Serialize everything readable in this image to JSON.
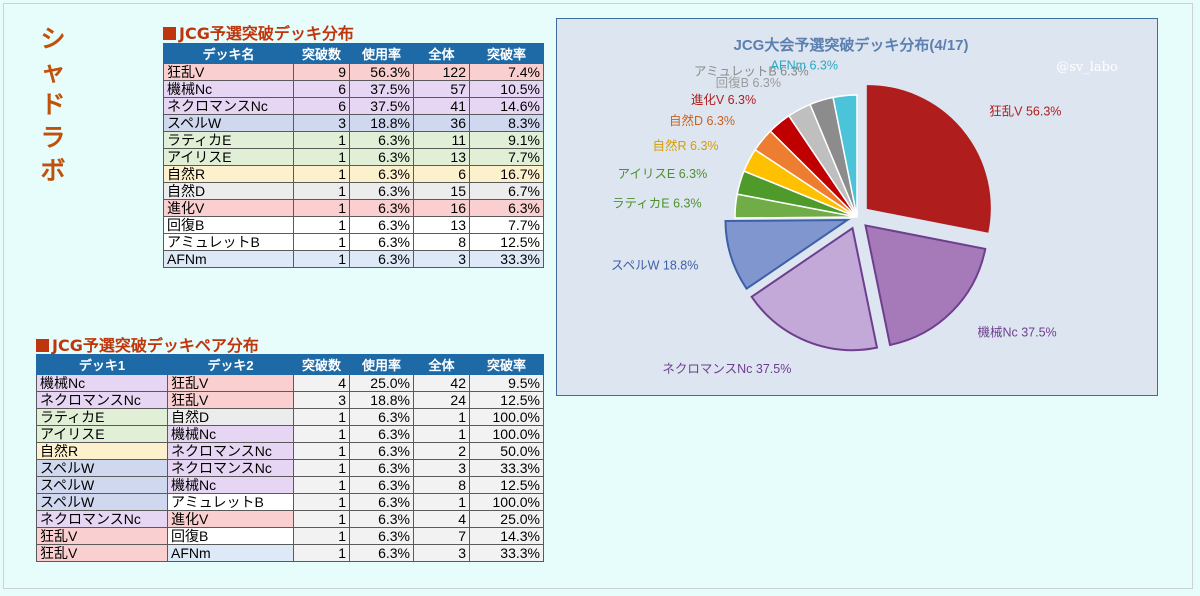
{
  "side_title": "シャドラボ",
  "deck_table": {
    "title": "JCG予選突破デッキ分布",
    "headers": [
      "デッキ名",
      "突破数",
      "使用率",
      "全体",
      "突破率"
    ],
    "rows": [
      {
        "name": "狂乱V",
        "count": "9",
        "usage": "56.3%",
        "total": "122",
        "rate": "7.4%",
        "color": "#f9cfcf"
      },
      {
        "name": "機械Nc",
        "count": "6",
        "usage": "37.5%",
        "total": "57",
        "rate": "10.5%",
        "color": "#e6d6f3"
      },
      {
        "name": "ネクロマンスNc",
        "count": "6",
        "usage": "37.5%",
        "total": "41",
        "rate": "14.6%",
        "color": "#e6d6f3"
      },
      {
        "name": "スペルW",
        "count": "3",
        "usage": "18.8%",
        "total": "36",
        "rate": "8.3%",
        "color": "#cfd8ee"
      },
      {
        "name": "ラティカE",
        "count": "1",
        "usage": "6.3%",
        "total": "11",
        "rate": "9.1%",
        "color": "#e0efd6"
      },
      {
        "name": "アイリスE",
        "count": "1",
        "usage": "6.3%",
        "total": "13",
        "rate": "7.7%",
        "color": "#e0efd6"
      },
      {
        "name": "自然R",
        "count": "1",
        "usage": "6.3%",
        "total": "6",
        "rate": "16.7%",
        "color": "#fdf0cc"
      },
      {
        "name": "自然D",
        "count": "1",
        "usage": "6.3%",
        "total": "15",
        "rate": "6.7%",
        "color": "#ececec"
      },
      {
        "name": "進化V",
        "count": "1",
        "usage": "6.3%",
        "total": "16",
        "rate": "6.3%",
        "color": "#f9cfcf"
      },
      {
        "name": "回復B",
        "count": "1",
        "usage": "6.3%",
        "total": "13",
        "rate": "7.7%",
        "color": "#ffffff"
      },
      {
        "name": "アミュレットB",
        "count": "1",
        "usage": "6.3%",
        "total": "8",
        "rate": "12.5%",
        "color": "#ffffff"
      },
      {
        "name": "AFNm",
        "count": "1",
        "usage": "6.3%",
        "total": "3",
        "rate": "33.3%",
        "color": "#dde9f6"
      }
    ]
  },
  "pair_table": {
    "title": "JCG予選突破デッキペア分布",
    "headers": [
      "デッキ1",
      "デッキ2",
      "突破数",
      "使用率",
      "全体",
      "突破率"
    ],
    "rows": [
      {
        "deck1": "機械Nc",
        "c1": "#e6d6f3",
        "deck2": "狂乱V",
        "c2": "#f9cfcf",
        "count": "4",
        "usage": "25.0%",
        "total": "42",
        "rate": "9.5%"
      },
      {
        "deck1": "ネクロマンスNc",
        "c1": "#e6d6f3",
        "deck2": "狂乱V",
        "c2": "#f9cfcf",
        "count": "3",
        "usage": "18.8%",
        "total": "24",
        "rate": "12.5%"
      },
      {
        "deck1": "ラティカE",
        "c1": "#e0efd6",
        "deck2": "自然D",
        "c2": "#ececec",
        "count": "1",
        "usage": "6.3%",
        "total": "1",
        "rate": "100.0%"
      },
      {
        "deck1": "アイリスE",
        "c1": "#e0efd6",
        "deck2": "機械Nc",
        "c2": "#e6d6f3",
        "count": "1",
        "usage": "6.3%",
        "total": "1",
        "rate": "100.0%"
      },
      {
        "deck1": "自然R",
        "c1": "#fdf0cc",
        "deck2": "ネクロマンスNc",
        "c2": "#e6d6f3",
        "count": "1",
        "usage": "6.3%",
        "total": "2",
        "rate": "50.0%"
      },
      {
        "deck1": "スペルW",
        "c1": "#cfd8ee",
        "deck2": "ネクロマンスNc",
        "c2": "#e6d6f3",
        "count": "1",
        "usage": "6.3%",
        "total": "3",
        "rate": "33.3%"
      },
      {
        "deck1": "スペルW",
        "c1": "#cfd8ee",
        "deck2": "機械Nc",
        "c2": "#e6d6f3",
        "count": "1",
        "usage": "6.3%",
        "total": "8",
        "rate": "12.5%"
      },
      {
        "deck1": "スペルW",
        "c1": "#cfd8ee",
        "deck2": "アミュレットB",
        "c2": "#ffffff",
        "count": "1",
        "usage": "6.3%",
        "total": "1",
        "rate": "100.0%"
      },
      {
        "deck1": "ネクロマンスNc",
        "c1": "#e6d6f3",
        "deck2": "進化V",
        "c2": "#f9cfcf",
        "count": "1",
        "usage": "6.3%",
        "total": "4",
        "rate": "25.0%"
      },
      {
        "deck1": "狂乱V",
        "c1": "#f9cfcf",
        "deck2": "回復B",
        "c2": "#ffffff",
        "count": "1",
        "usage": "6.3%",
        "total": "7",
        "rate": "14.3%"
      },
      {
        "deck1": "狂乱V",
        "c1": "#f9cfcf",
        "deck2": "AFNm",
        "c2": "#dde9f6",
        "count": "1",
        "usage": "6.3%",
        "total": "3",
        "rate": "33.3%"
      }
    ]
  },
  "chart_data": {
    "type": "pie",
    "title": "JCG大会予選突破デッキ分布(4/17)",
    "watermark": "@sv_labo",
    "slices": [
      {
        "label": "狂乱V 56.3%",
        "value": 56.3,
        "color": "#b01d1d",
        "label_color": "#b01d1d"
      },
      {
        "label": "機械Nc 37.5%",
        "value": 37.5,
        "color": "#a67ab9",
        "label_color": "#6e3f8e"
      },
      {
        "label": "ネクロマンスNc 37.5%",
        "value": 37.5,
        "color": "#c3a9d8",
        "label_color": "#6e3f8e"
      },
      {
        "label": "スペルW 18.8%",
        "value": 18.8,
        "color": "#7f96cf",
        "label_color": "#3e5fa9"
      },
      {
        "label": "ラティカE 6.3%",
        "value": 6.3,
        "color": "#70ad47",
        "label_color": "#4f8f2f"
      },
      {
        "label": "アイリスE 6.3%",
        "value": 6.3,
        "color": "#4e9a2a",
        "label_color": "#4f8f2f"
      },
      {
        "label": "自然R 6.3%",
        "value": 6.3,
        "color": "#ffc000",
        "label_color": "#d79c00"
      },
      {
        "label": "自然D 6.3%",
        "value": 6.3,
        "color": "#ed7d31",
        "label_color": "#c9601d"
      },
      {
        "label": "進化V 6.3%",
        "value": 6.3,
        "color": "#c00000",
        "label_color": "#b01d1d"
      },
      {
        "label": "回復B 6.3%",
        "value": 6.3,
        "color": "#bfbfbf",
        "label_color": "#9a9a9a"
      },
      {
        "label": "アミュレットB 6.3%",
        "value": 6.3,
        "color": "#8c8c8c",
        "label_color": "#8a8a8a"
      },
      {
        "label": "AFNm 6.3%",
        "value": 6.3,
        "color": "#4bc3d9",
        "label_color": "#2aa7c2"
      }
    ]
  }
}
